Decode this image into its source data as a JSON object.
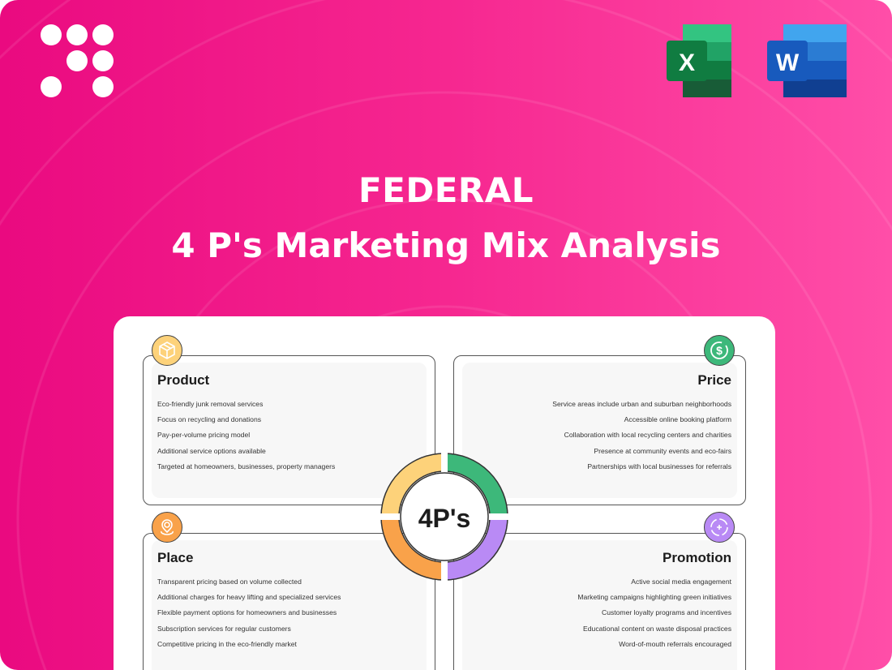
{
  "header": {
    "company": "FEDERAL",
    "subtitle": "4 P's Marketing Mix Analysis"
  },
  "apps": [
    {
      "name": "excel-icon",
      "letter": "X"
    },
    {
      "name": "word-icon",
      "letter": "W"
    }
  ],
  "center_label": "4P's",
  "colors": {
    "product": "#FDD27A",
    "price": "#3DB87A",
    "place": "#F9A24A",
    "promotion": "#B98AF5",
    "background": "#F62790"
  },
  "quadrants": {
    "product": {
      "title": "Product",
      "icon": "box-icon",
      "items": [
        "Eco-friendly junk removal services",
        "Focus on recycling and donations",
        "Pay-per-volume pricing model",
        "Additional service options available",
        "Targeted at homeowners, businesses, property managers"
      ]
    },
    "price": {
      "title": "Price",
      "icon": "dollar-icon",
      "items": [
        "Service areas include urban and suburban neighborhoods",
        "Accessible online booking platform",
        "Collaboration with local recycling centers and charities",
        "Presence at community events and eco-fairs",
        "Partnerships with local businesses for referrals"
      ]
    },
    "place": {
      "title": "Place",
      "icon": "location-pin-icon",
      "items": [
        "Transparent pricing based on volume collected",
        "Additional charges for heavy lifting and specialized services",
        "Flexible payment options for homeowners and businesses",
        "Subscription services for regular customers",
        "Competitive pricing in the eco-friendly market"
      ]
    },
    "promotion": {
      "title": "Promotion",
      "icon": "target-icon",
      "items": [
        "Active social media engagement",
        "Marketing campaigns highlighting green initiatives",
        "Customer loyalty programs and incentives",
        "Educational content on waste disposal practices",
        "Word-of-mouth referrals encouraged"
      ]
    }
  }
}
